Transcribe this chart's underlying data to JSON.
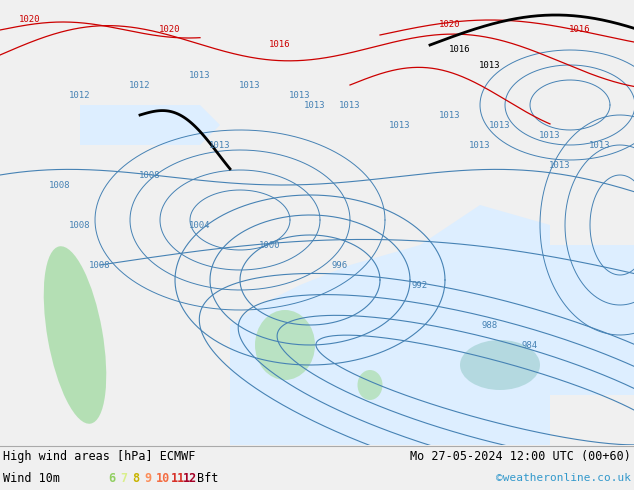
{
  "title_left": "High wind areas [hPa] ECMWF",
  "title_right": "Mo 27-05-2024 12:00 UTC (00+60)",
  "legend_label": "Wind 10m",
  "bft_labels": [
    "6",
    "7",
    "8",
    "9",
    "10",
    "11",
    "12",
    "Bft"
  ],
  "bft_colors": [
    "#91cf61",
    "#d9ef8b",
    "#ffffbf",
    "#fee08b",
    "#fc8d59",
    "#d73027",
    "#a50026",
    "#000000"
  ],
  "copyright": "©weatheronline.co.uk",
  "map_bg": "#c8e6a0",
  "sea_color": "#e8f4f8",
  "fig_width": 6.34,
  "fig_height": 4.9,
  "bottom_bg": "#f0f0f0",
  "map_url": "https://www.weatheronline.co.uk/",
  "isobar_blue": "#4682b4",
  "isobar_red": "#cc0000",
  "isobar_black": "#000000",
  "font_size_legend": 8.5,
  "font_size_title": 8.5
}
